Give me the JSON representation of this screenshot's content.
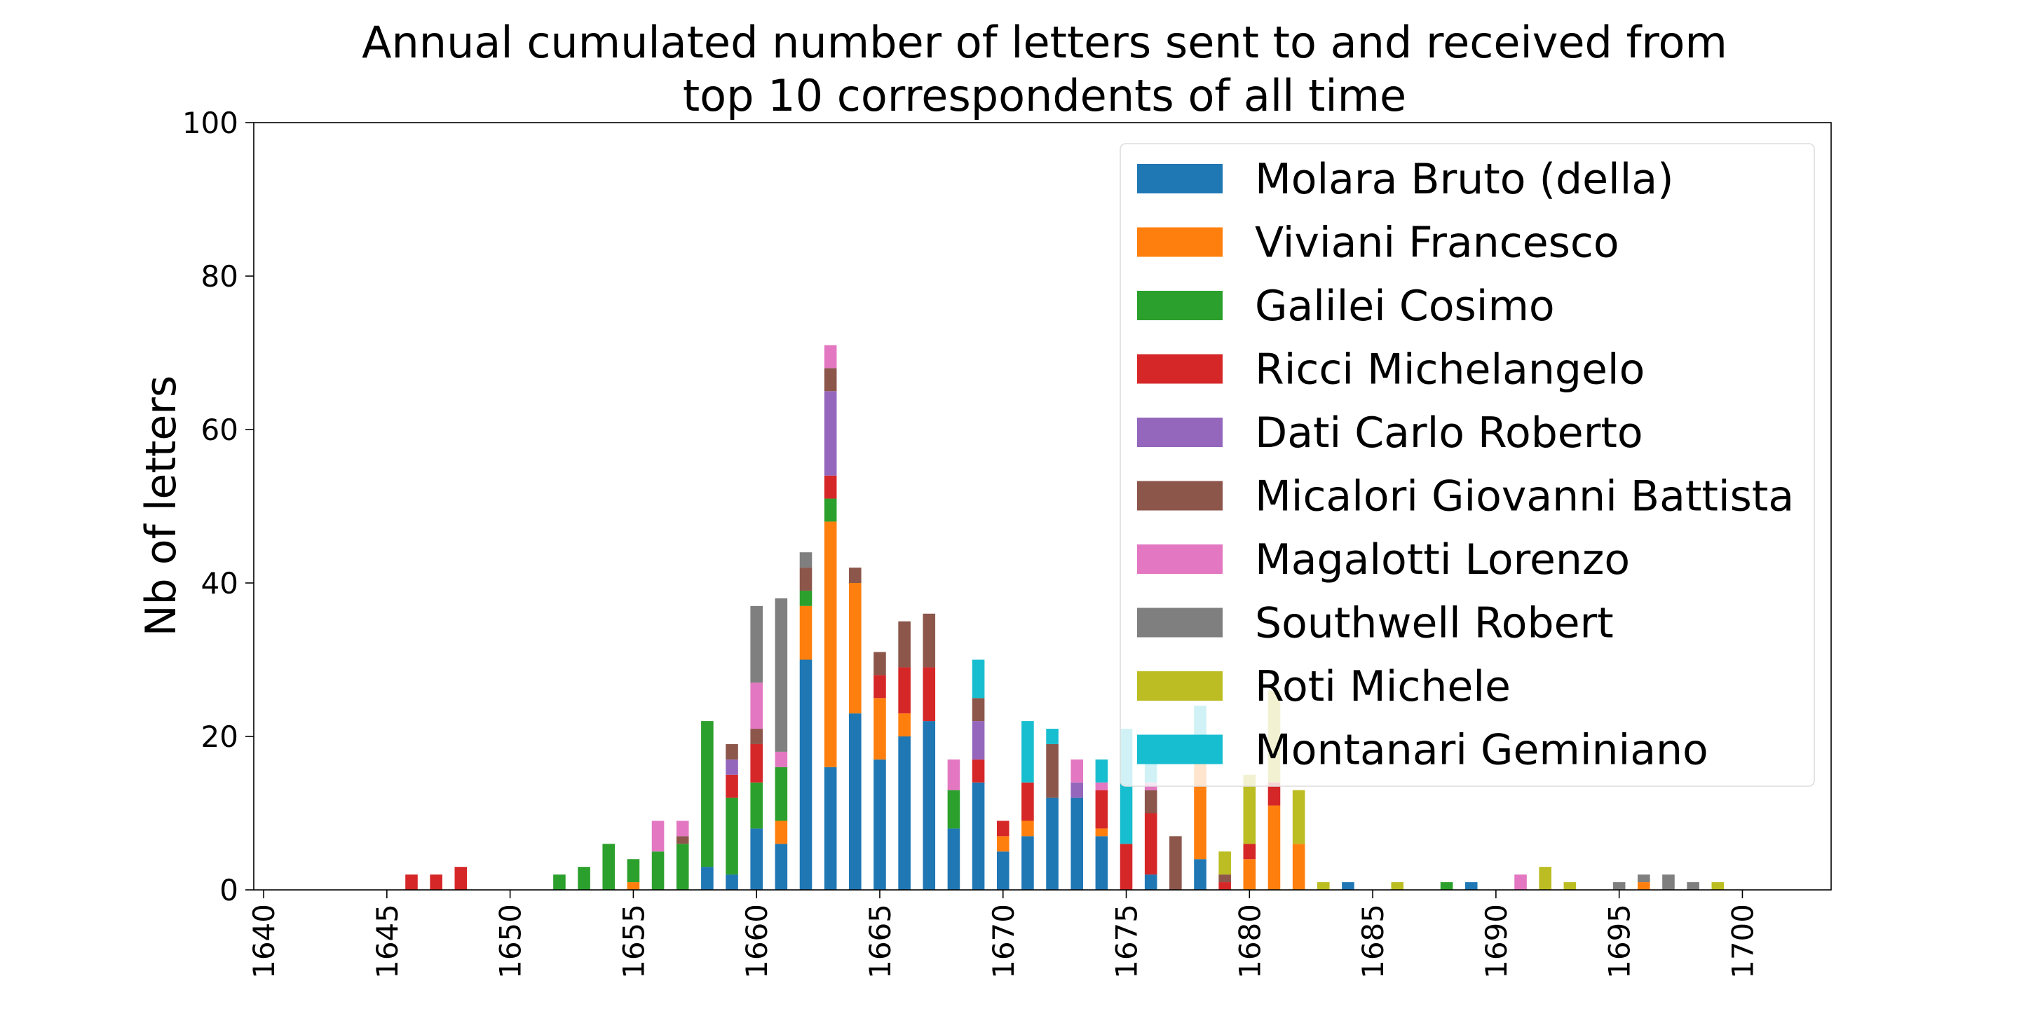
{
  "chart_data": {
    "type": "bar",
    "stacked": true,
    "title_lines": [
      "Annual cumulated number of letters sent to and received from",
      "top 10 correspondents of all time"
    ],
    "xlabel": "",
    "ylabel": "Nb of letters",
    "xlim": [
      1639.6,
      1703.6
    ],
    "ylim": [
      0,
      100
    ],
    "xticks": [
      "1640",
      "1645",
      "1650",
      "1655",
      "1660",
      "1665",
      "1670",
      "1675",
      "1680",
      "1685",
      "1690",
      "1695",
      "1700"
    ],
    "yticks": [
      "0",
      "20",
      "40",
      "60",
      "80",
      "100"
    ],
    "grid": false,
    "legend_position": "upper right",
    "bar_width_years": 0.5,
    "years": [
      1646,
      1647,
      1648,
      1652,
      1653,
      1654,
      1655,
      1656,
      1657,
      1658,
      1659,
      1660,
      1661,
      1662,
      1663,
      1664,
      1665,
      1666,
      1667,
      1668,
      1669,
      1670,
      1671,
      1672,
      1673,
      1674,
      1675,
      1676,
      1677,
      1678,
      1679,
      1680,
      1681,
      1682,
      1683,
      1684,
      1686,
      1688,
      1689,
      1691,
      1692,
      1693,
      1695,
      1696,
      1697,
      1698,
      1699
    ],
    "series": [
      {
        "name": "Molara Bruto (della)",
        "color": "#1f77b4",
        "values": [
          0,
          0,
          0,
          0,
          0,
          0,
          0,
          0,
          0,
          3,
          2,
          8,
          6,
          30,
          16,
          23,
          17,
          20,
          22,
          8,
          14,
          5,
          7,
          12,
          12,
          7,
          0,
          2,
          0,
          4,
          0,
          0,
          0,
          0,
          0,
          1,
          0,
          0,
          1,
          0,
          0,
          0,
          0,
          0,
          0,
          0,
          0
        ]
      },
      {
        "name": "Viviani Francesco",
        "color": "#ff7f0e",
        "values": [
          0,
          0,
          0,
          0,
          0,
          0,
          1,
          0,
          0,
          0,
          0,
          0,
          3,
          7,
          32,
          17,
          8,
          3,
          0,
          0,
          0,
          2,
          2,
          0,
          0,
          1,
          0,
          0,
          0,
          14,
          0,
          4,
          11,
          6,
          0,
          0,
          0,
          0,
          0,
          0,
          0,
          0,
          0,
          1,
          0,
          0,
          0
        ]
      },
      {
        "name": "Galilei Cosimo",
        "color": "#2ca02c",
        "values": [
          0,
          0,
          0,
          2,
          3,
          6,
          3,
          5,
          6,
          19,
          10,
          6,
          7,
          2,
          3,
          0,
          0,
          0,
          0,
          5,
          0,
          0,
          0,
          0,
          0,
          0,
          0,
          0,
          0,
          0,
          0,
          0,
          0,
          0,
          0,
          0,
          0,
          1,
          0,
          0,
          0,
          0,
          0,
          0,
          0,
          0,
          0
        ]
      },
      {
        "name": "Ricci Michelangelo",
        "color": "#d62728",
        "values": [
          2,
          2,
          3,
          0,
          0,
          0,
          0,
          0,
          0,
          0,
          3,
          5,
          0,
          0,
          3,
          0,
          3,
          6,
          7,
          0,
          3,
          2,
          5,
          0,
          0,
          5,
          6,
          8,
          0,
          0,
          1,
          2,
          3,
          0,
          0,
          0,
          0,
          0,
          0,
          0,
          0,
          0,
          0,
          0,
          0,
          0,
          0
        ]
      },
      {
        "name": "Dati Carlo Roberto",
        "color": "#9467bd",
        "values": [
          0,
          0,
          0,
          0,
          0,
          0,
          0,
          0,
          0,
          0,
          2,
          0,
          0,
          0,
          11,
          0,
          0,
          0,
          0,
          0,
          5,
          0,
          0,
          0,
          2,
          0,
          0,
          0,
          0,
          0,
          0,
          0,
          0,
          0,
          0,
          0,
          0,
          0,
          0,
          0,
          0,
          0,
          0,
          0,
          0,
          0,
          0
        ]
      },
      {
        "name": "Micalori Giovanni Battista",
        "color": "#8c564b",
        "values": [
          0,
          0,
          0,
          0,
          0,
          0,
          0,
          0,
          1,
          0,
          2,
          2,
          0,
          3,
          3,
          2,
          3,
          6,
          7,
          0,
          3,
          0,
          0,
          7,
          0,
          0,
          0,
          3,
          7,
          0,
          1,
          0,
          0,
          0,
          0,
          0,
          0,
          0,
          0,
          0,
          0,
          0,
          0,
          0,
          0,
          0,
          0
        ]
      },
      {
        "name": "Magalotti Lorenzo",
        "color": "#e377c2",
        "values": [
          0,
          0,
          0,
          0,
          0,
          0,
          0,
          4,
          2,
          0,
          0,
          6,
          2,
          0,
          3,
          0,
          0,
          0,
          0,
          4,
          0,
          0,
          0,
          0,
          3,
          1,
          0,
          1,
          0,
          0,
          0,
          0,
          0,
          0,
          0,
          0,
          0,
          0,
          0,
          2,
          0,
          0,
          0,
          0,
          0,
          0,
          0
        ]
      },
      {
        "name": "Southwell Robert",
        "color": "#7f7f7f",
        "values": [
          0,
          0,
          0,
          0,
          0,
          0,
          0,
          0,
          0,
          0,
          0,
          10,
          20,
          2,
          0,
          0,
          0,
          0,
          0,
          0,
          0,
          0,
          0,
          0,
          0,
          0,
          0,
          0,
          0,
          0,
          0,
          0,
          0,
          0,
          0,
          0,
          0,
          0,
          0,
          0,
          0,
          0,
          1,
          1,
          2,
          1,
          0
        ]
      },
      {
        "name": "Roti Michele",
        "color": "#bcbd22",
        "values": [
          0,
          0,
          0,
          0,
          0,
          0,
          0,
          0,
          0,
          0,
          0,
          0,
          0,
          0,
          0,
          0,
          0,
          0,
          0,
          0,
          0,
          0,
          0,
          0,
          0,
          0,
          0,
          0,
          0,
          0,
          3,
          9,
          12,
          7,
          1,
          0,
          1,
          0,
          0,
          0,
          3,
          1,
          0,
          0,
          0,
          0,
          1
        ]
      },
      {
        "name": "Montanari Geminiano",
        "color": "#17becf",
        "values": [
          0,
          0,
          0,
          0,
          0,
          0,
          0,
          0,
          0,
          0,
          0,
          0,
          0,
          0,
          0,
          0,
          0,
          0,
          0,
          0,
          5,
          0,
          8,
          2,
          0,
          3,
          15,
          6,
          0,
          6,
          0,
          0,
          0,
          0,
          0,
          0,
          0,
          0,
          0,
          0,
          0,
          0,
          0,
          0,
          0,
          0,
          0
        ]
      }
    ]
  }
}
